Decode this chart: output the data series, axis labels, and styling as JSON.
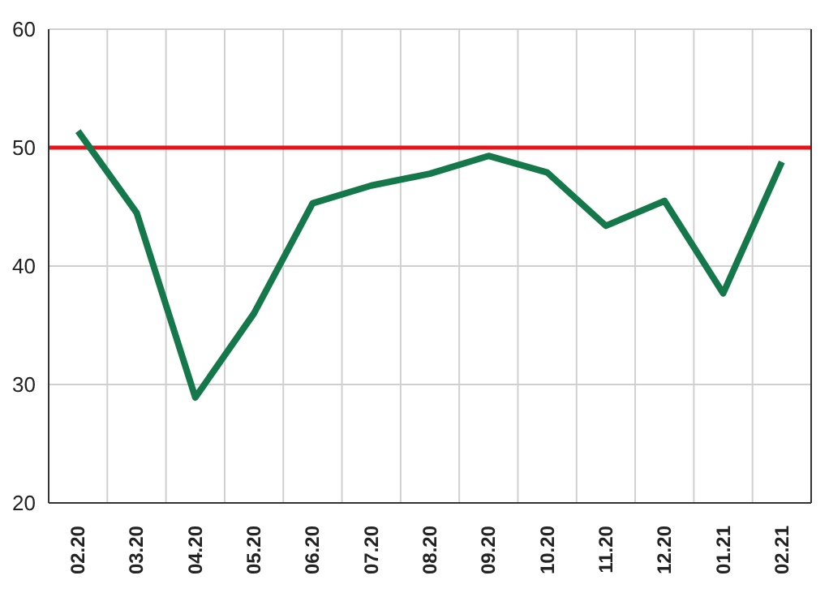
{
  "chart_data": {
    "type": "line",
    "categories": [
      "02.20",
      "03.20",
      "04.20",
      "05.20",
      "06.20",
      "07.20",
      "08.20",
      "09.20",
      "10.20",
      "11.20",
      "12.20",
      "01.21",
      "02.21"
    ],
    "series": [
      {
        "color": "#14784a",
        "values": [
          51.4,
          44.5,
          28.9,
          36,
          45.3,
          46.8,
          47.8,
          49.3,
          47.9,
          43.4,
          45.5,
          37.7,
          48.8
        ]
      }
    ],
    "ylim": [
      20,
      60
    ],
    "yticks": [
      20,
      30,
      40,
      50,
      60
    ],
    "grid": true,
    "marker": "none",
    "line_style": "solid",
    "ref_lines": [
      {
        "axis": "y",
        "value": 50,
        "color": "#e8141c"
      }
    ]
  }
}
